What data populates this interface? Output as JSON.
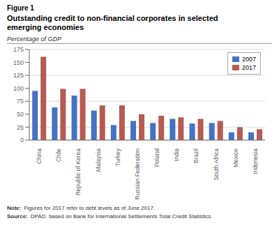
{
  "chart_data": {
    "type": "bar",
    "title": "Outstanding credit to non-financial corporates in selected\nemerging economies",
    "ylabel": "Percentage of GDP",
    "annotations": [
      "Figure 1",
      "Note:",
      "Figures for 2017 refer to debt levels as of June 2017.",
      "Source:",
      "DPAD, based on Bank for International Settlements Total Credit Statistics."
    ],
    "categories": [
      "China",
      "Chile",
      "Republic of Korea",
      "Malaysia",
      "Turkey",
      "Russian Federation",
      "Poland",
      "India",
      "Brazil",
      "South Africa",
      "Mexico",
      "Indonesia"
    ],
    "series": [
      {
        "name": "2007",
        "color": "#4472C4",
        "values": [
          95,
          63,
          86,
          57,
          29,
          37,
          33,
          41,
          32,
          33,
          15,
          15
        ]
      },
      {
        "name": "2017",
        "color": "#B55B52",
        "values": [
          161,
          99,
          99,
          67,
          67,
          50,
          47,
          44,
          41,
          37,
          25,
          21
        ]
      }
    ],
    "ylim": [
      0,
      175
    ],
    "yticks": [
      0,
      25,
      50,
      75,
      100,
      125,
      150,
      175
    ],
    "grid": true,
    "legend": "upper right"
  }
}
